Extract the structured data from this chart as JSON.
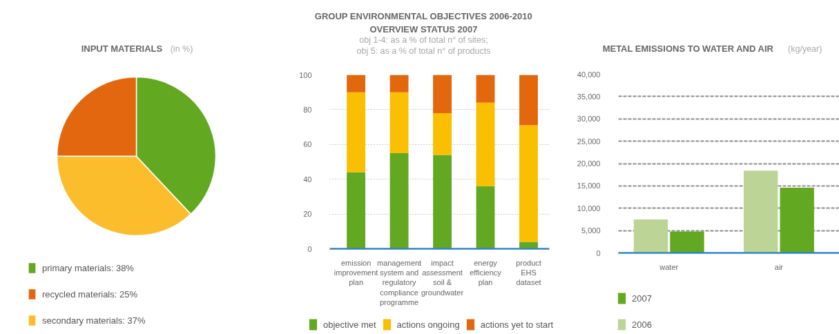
{
  "chart_data": [
    {
      "type": "pie",
      "title": "INPUT MATERIALS",
      "subtitle": "(in %)",
      "categories": [
        "primary materials: 38%",
        "recycled materials: 25%",
        "secondary materials: 37%"
      ],
      "values": [
        38,
        25,
        37
      ],
      "colors": [
        "#63a821",
        "#e3670f",
        "#fbbd2b"
      ],
      "legend": "bottom"
    },
    {
      "type": "bar",
      "stacked": true,
      "title": "GROUP ENVIRONMENTAL OBJECTIVES 2006-2010\nOVERVIEW STATUS 2007",
      "subtitle": "obj 1-4: as a % of total n° of sites;\nobj 5: as a % of total n° of products",
      "categories": [
        "emission improvement plan",
        "management system and regulatory compliance programme",
        "impact assessment soil & groundwater",
        "energy efficiency plan",
        "product EHS dataset"
      ],
      "series": [
        {
          "name": "objective met",
          "color": "#63a821",
          "values": [
            44,
            55,
            54,
            36,
            4
          ]
        },
        {
          "name": "actions ongoing",
          "color": "#f9bf00",
          "values": [
            46,
            35,
            24,
            48,
            67
          ]
        },
        {
          "name": "actions yet to start",
          "color": "#e3680d",
          "values": [
            10,
            10,
            22,
            16,
            29
          ]
        }
      ],
      "ylim": [
        0,
        100
      ],
      "yticks": [
        0,
        20,
        40,
        60,
        80,
        100
      ],
      "grid": "y",
      "legend": "bottom"
    },
    {
      "type": "bar",
      "title": "METAL EMISSIONS TO WATER AND AIR",
      "subtitle": "(kg/year)",
      "categories": [
        "water",
        "air"
      ],
      "series": [
        {
          "name": "2006",
          "color": "#bcd596",
          "values": [
            7500,
            18400
          ]
        },
        {
          "name": "2007",
          "color": "#63a821",
          "values": [
            4800,
            14600
          ]
        }
      ],
      "ylim": [
        0,
        40000
      ],
      "yticks": [
        0,
        {
          "value": 5000,
          "label": "5,000"
        },
        {
          "value": 10000,
          "label": "10,000"
        },
        {
          "value": 15000,
          "label": "15,000"
        },
        {
          "value": 20000,
          "label": "20,000"
        },
        {
          "value": 25000,
          "label": "25,000"
        },
        {
          "value": 30000,
          "label": "30,000"
        },
        {
          "value": 35000,
          "label": "35,000"
        },
        {
          "value": 40000,
          "label": "40,000"
        }
      ],
      "grid": "y",
      "legend": "bottom"
    }
  ]
}
